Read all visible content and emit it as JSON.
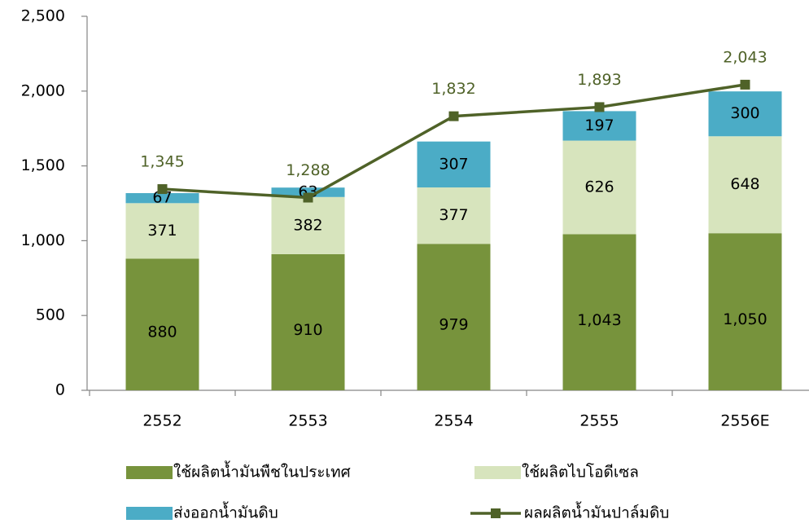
{
  "chart_data": {
    "type": "bar",
    "stacked": true,
    "categories": [
      "2552",
      "2553",
      "2554",
      "2555",
      "2556E"
    ],
    "ylim": [
      0,
      2500
    ],
    "yticks": [
      0,
      500,
      {
        "value": 1000,
        "label": "1,000"
      },
      {
        "value": 1500,
        "label": "1,500"
      },
      {
        "value": 2000,
        "label": "2,000"
      },
      {
        "value": 2500,
        "label": "2,500"
      }
    ],
    "series": [
      {
        "name": "ใช้ผลิตน้ำมันพืชในประเทศ",
        "color": "#77933c",
        "values": [
          880,
          910,
          979,
          1043,
          1050
        ],
        "value_labels": [
          "880",
          "910",
          "979",
          "1,043",
          "1,050"
        ]
      },
      {
        "name": "ใช้ผลิตไบโอดีเซล",
        "color": "#d7e4bd",
        "values": [
          371,
          382,
          377,
          626,
          648
        ]
      },
      {
        "name": "ส่งออกน้ำมันดิบ",
        "color": "#4bacc6",
        "values": [
          67,
          63,
          307,
          197,
          300
        ]
      },
      {
        "name": "ผลผลิตน้ำมันปาล์มดิบ",
        "type": "line",
        "color": "#4f6228",
        "values": [
          1345,
          1288,
          1832,
          1893,
          2043
        ],
        "value_labels": [
          "1,345",
          "1,288",
          "1,832",
          "1,893",
          "2,043"
        ]
      }
    ]
  }
}
